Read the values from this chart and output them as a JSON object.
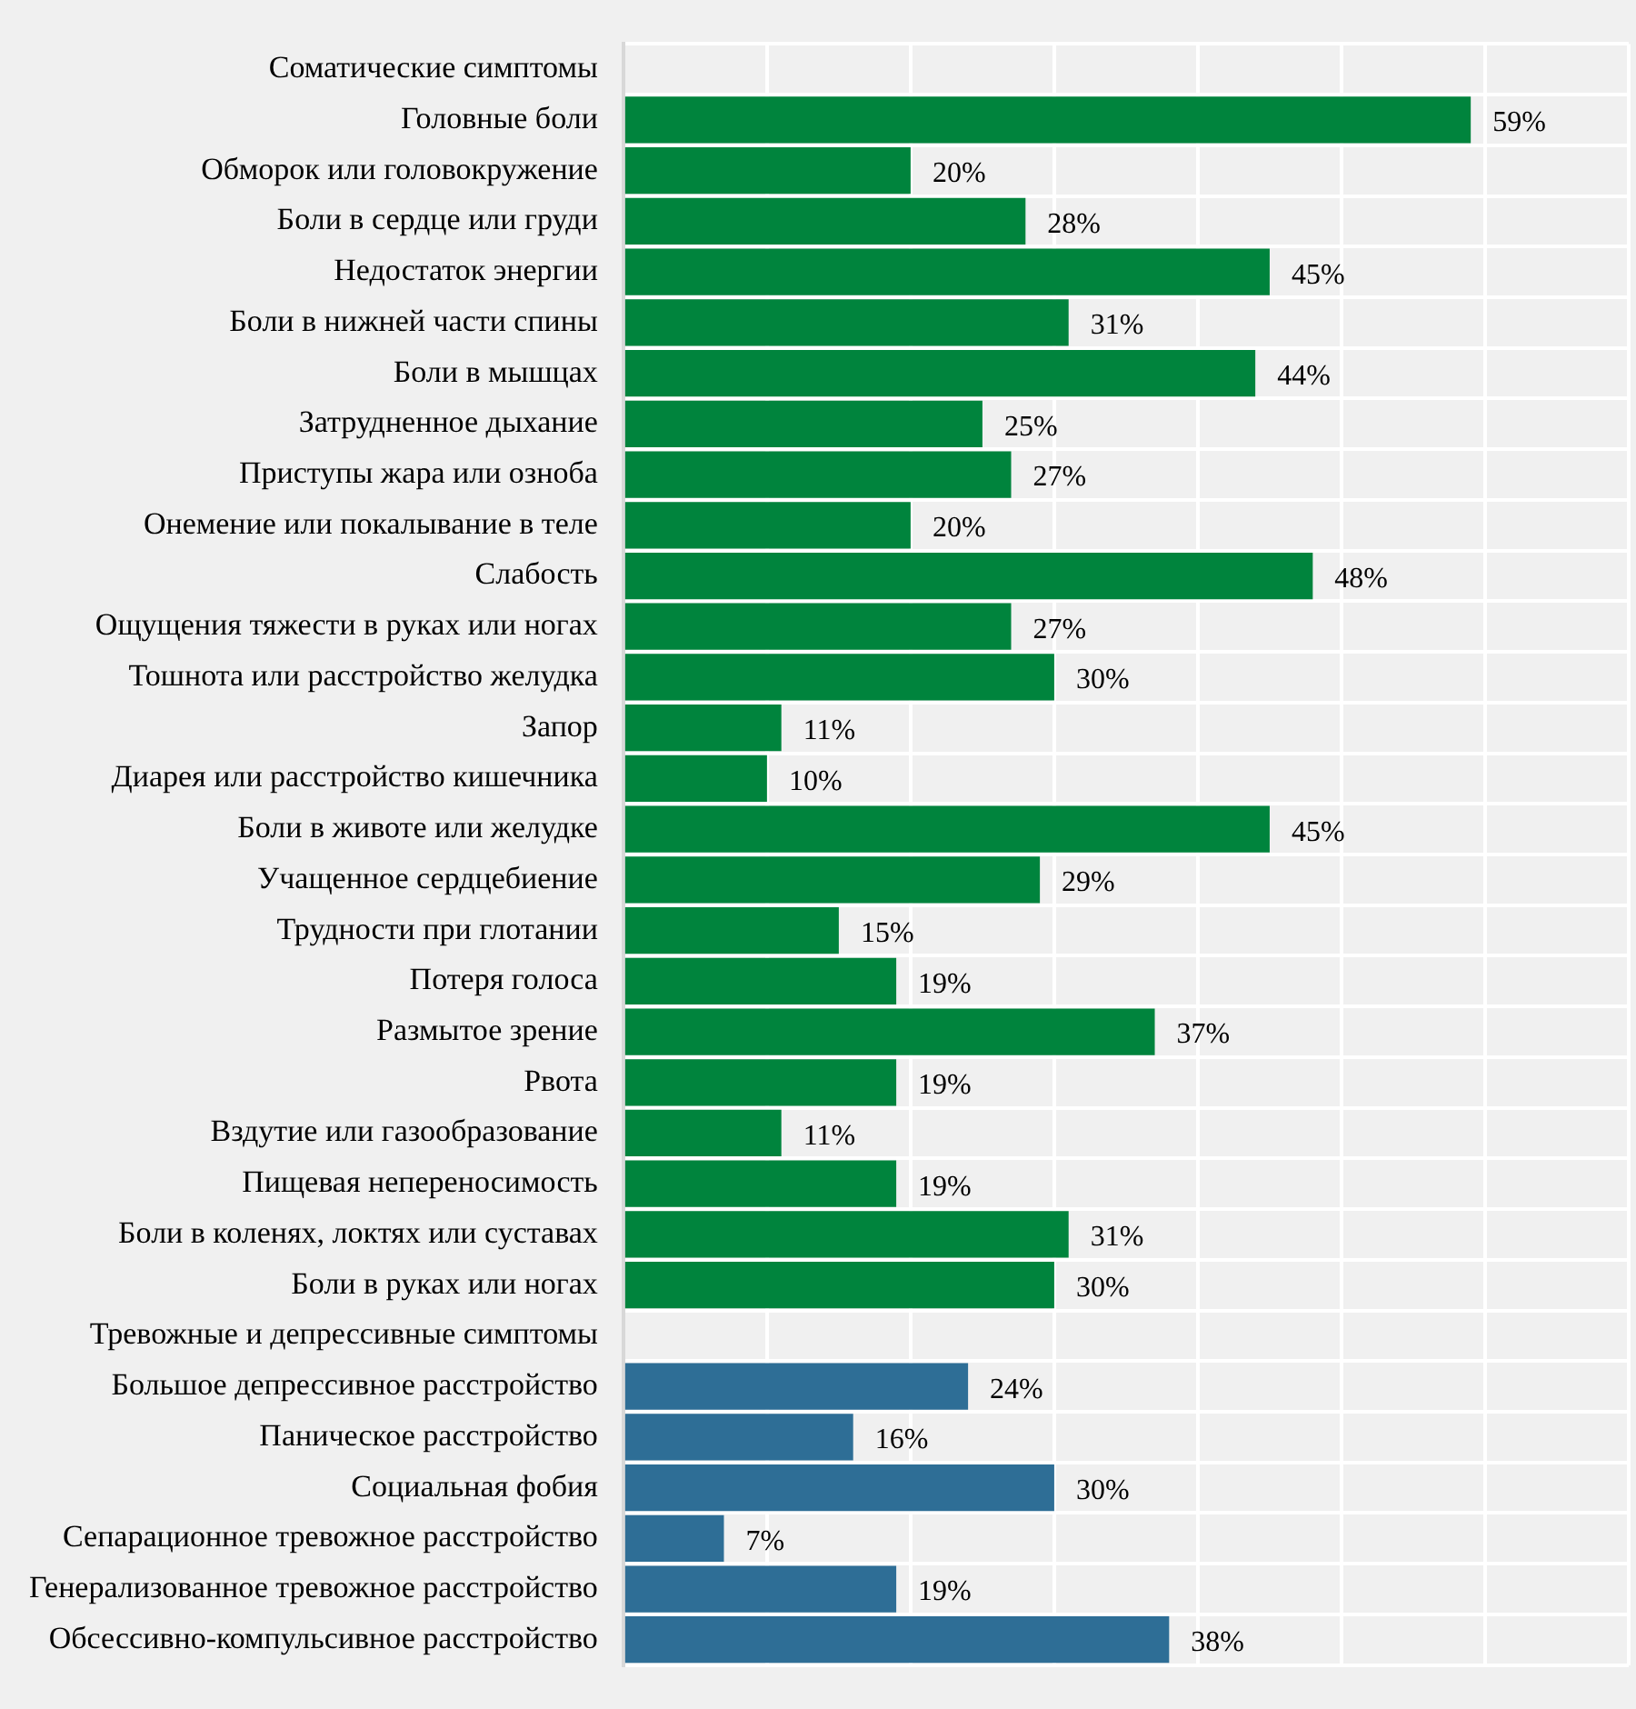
{
  "chart_data": {
    "type": "bar",
    "orientation": "horizontal",
    "categories": [
      "Соматические симптомы",
      "Головные боли",
      "Обморок или головокружение",
      "Боли в сердце или груди",
      "Недостаток энергии",
      "Боли в нижней части спины",
      "Боли в мышцах",
      "Затрудненное дыхание",
      "Приступы жара или озноба",
      "Онемение или покалывание в теле",
      "Слабость",
      "Ощущения тяжести в руках или ногах",
      "Тошнота или расстройство желудка",
      "Запор",
      "Диарея или расстройство кишечника",
      "Боли в животе или желудке",
      "Учащенное сердцебиение",
      "Трудности при глотании",
      "Потеря голоса",
      "Размытое зрение",
      "Рвота",
      "Вздутие или газообразование",
      "Пищевая непереносимость",
      "Боли в коленях, локтях или суставах",
      "Боли в руках или ногах",
      "Тревожные и депрессивные симптомы",
      "Большое депрессивное расстройство",
      "Паническое расстройство",
      "Социальная фобия",
      "Сепарационное тревожное расстройство",
      "Генерализованное тревожное расстройство",
      "Обсессивно-компульсивное расстройство"
    ],
    "values": [
      null,
      59,
      20,
      28,
      45,
      31,
      44,
      25,
      27,
      20,
      48,
      27,
      30,
      11,
      10,
      45,
      29,
      15,
      19,
      37,
      19,
      11,
      19,
      31,
      30,
      null,
      24,
      16,
      30,
      7,
      19,
      38
    ],
    "value_labels": [
      null,
      "59%",
      "20%",
      "28%",
      "45%",
      "31%",
      "44%",
      "25%",
      "27%",
      "20%",
      "48%",
      "27%",
      "30%",
      "11%",
      "10%",
      "45%",
      "29%",
      "15%",
      "19%",
      "37%",
      "19%",
      "11%",
      "19%",
      "31%",
      "30%",
      null,
      "24%",
      "16%",
      "30%",
      "7%",
      "19%",
      "38%"
    ],
    "colors": [
      "#00843d",
      "#00843d",
      "#00843d",
      "#00843d",
      "#00843d",
      "#00843d",
      "#00843d",
      "#00843d",
      "#00843d",
      "#00843d",
      "#00843d",
      "#00843d",
      "#00843d",
      "#00843d",
      "#00843d",
      "#00843d",
      "#00843d",
      "#00843d",
      "#00843d",
      "#00843d",
      "#00843d",
      "#00843d",
      "#00843d",
      "#00843d",
      "#00843d",
      "#2e6e96",
      "#2e6e96",
      "#2e6e96",
      "#2e6e96",
      "#2e6e96",
      "#2e6e96",
      "#2e6e96"
    ],
    "xlim": [
      0,
      70
    ],
    "xticks": [
      {
        "value": 0,
        "label": null
      },
      {
        "value": 10,
        "label": null
      },
      {
        "value": 20,
        "label": null
      },
      {
        "value": 30,
        "label": null
      },
      {
        "value": 40,
        "label": null
      },
      {
        "value": 50,
        "label": null
      },
      {
        "value": 60,
        "label": null
      },
      {
        "value": 70,
        "label": null
      }
    ],
    "tick_labels": "y",
    "grid": true,
    "legend": false
  }
}
